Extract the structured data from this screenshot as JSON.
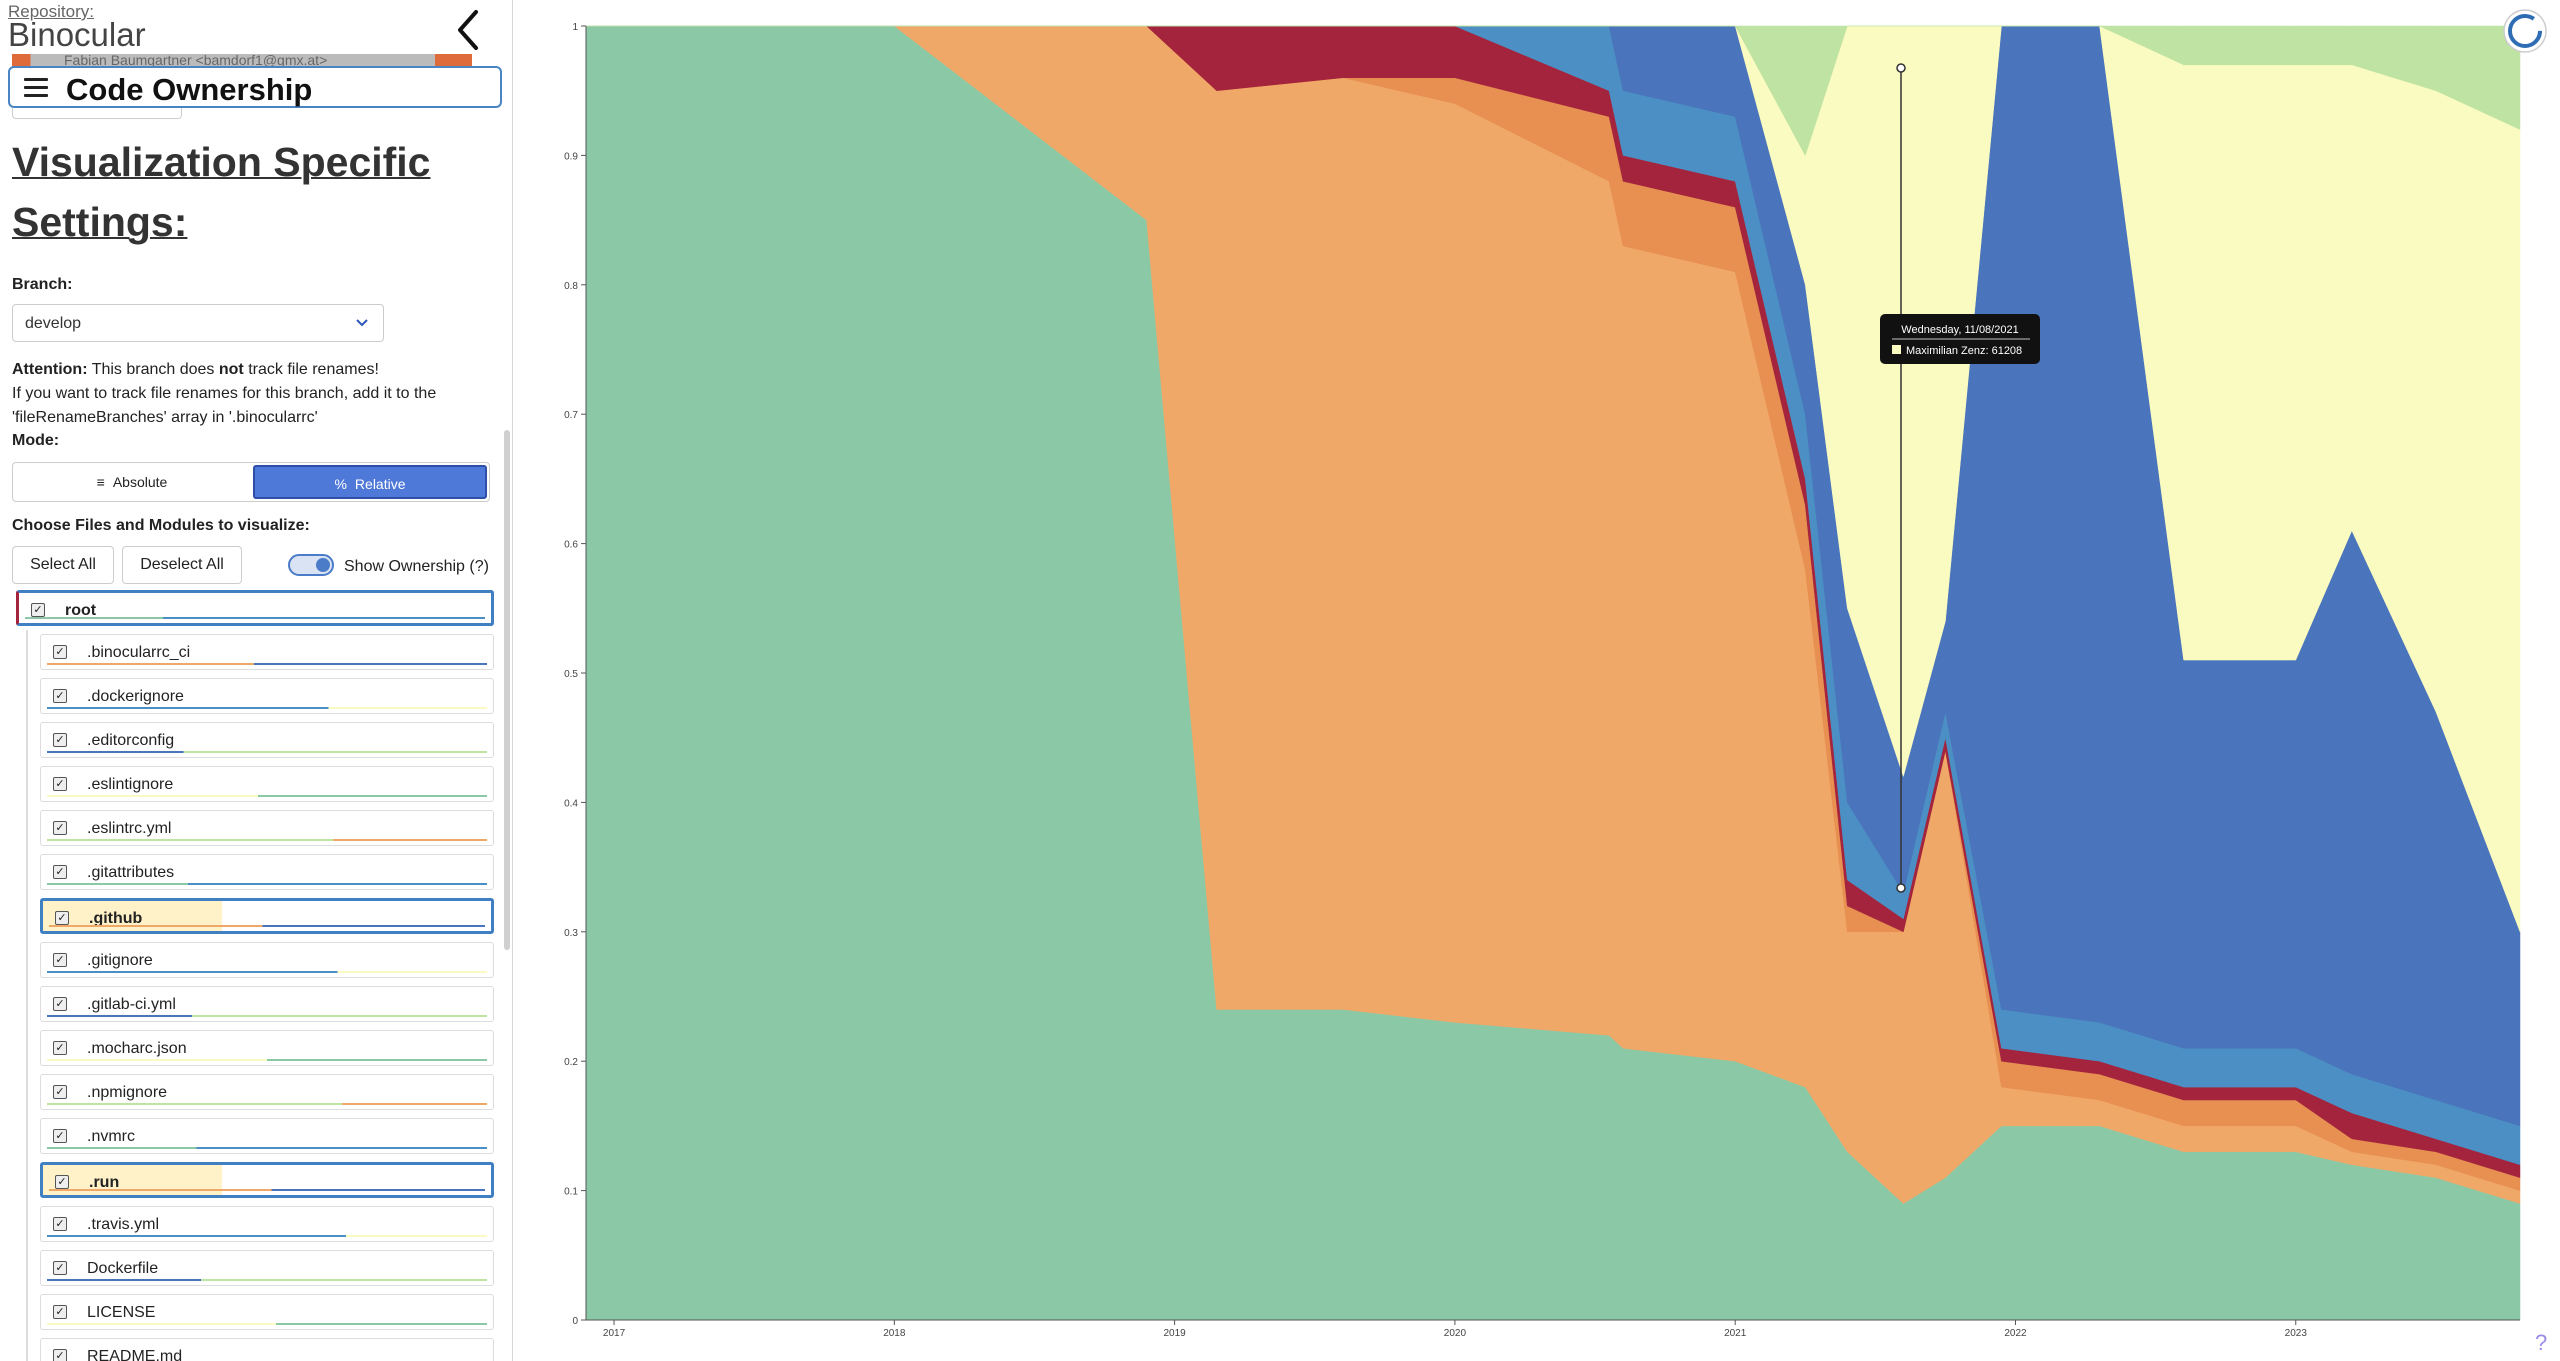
{
  "repository": {
    "label": "Repository:",
    "name": "Binocular",
    "author_strip": "Fabian Baumgartner <bamdorf1@gmx.at>"
  },
  "visualization": {
    "title": "Code Ownership"
  },
  "settings": {
    "heading": "Visualization Specific Settings:",
    "branch_label": "Branch:",
    "branch_value": "develop",
    "attention_label": "Attention:",
    "attention_pre": " This branch does ",
    "attention_bold": "not",
    "attention_post": " track file renames!",
    "attention_line2": "If you want to track file renames for this branch, add it to the",
    "attention_line3": "'fileRenameBranches' array in '.binocularrc'",
    "mode_label": "Mode:",
    "mode_absolute": "Absolute",
    "mode_relative": "Relative",
    "choose_label": "Choose Files and Modules to visualize:",
    "select_all": "Select All",
    "deselect_all": "Deselect All",
    "show_ownership": "Show Ownership (?)"
  },
  "files": [
    {
      "name": "root",
      "folder": true
    },
    {
      "name": ".binocularrc_ci"
    },
    {
      "name": ".dockerignore"
    },
    {
      "name": ".editorconfig"
    },
    {
      "name": ".eslintignore"
    },
    {
      "name": ".eslintrc.yml"
    },
    {
      "name": ".gitattributes"
    },
    {
      "name": ".github",
      "folder": true
    },
    {
      "name": ".gitignore"
    },
    {
      "name": ".gitlab-ci.yml"
    },
    {
      "name": ".mocharc.json"
    },
    {
      "name": ".npmignore"
    },
    {
      "name": ".nvmrc"
    },
    {
      "name": ".run",
      "folder": true
    },
    {
      "name": ".travis.yml"
    },
    {
      "name": "Dockerfile"
    },
    {
      "name": "LICENSE"
    },
    {
      "name": "README.md"
    }
  ],
  "tooltip": {
    "date": "Wednesday, 11/08/2021",
    "entry": "Maximilian Zenz: 61208"
  },
  "chart_data": {
    "type": "area",
    "stacked": true,
    "normalized": true,
    "x_ticks": [
      "2017",
      "2018",
      "2019",
      "2020",
      "2021",
      "2022",
      "2023"
    ],
    "y_ticks": [
      "0",
      "0.1",
      "0.2",
      "0.3",
      "0.4",
      "0.5",
      "0.6",
      "0.7",
      "0.8",
      "0.9",
      "1"
    ],
    "ylim": [
      0,
      1
    ],
    "colors": [
      "#8ac8a6",
      "#f0a868",
      "#e88f52",
      "#a3243c",
      "#4b8fc4",
      "#4a74bb",
      "#fafbc0",
      "#bfe3a2"
    ],
    "x": [
      2016.9,
      2018.0,
      2018.9,
      2019.15,
      2019.6,
      2020.0,
      2020.55,
      2020.6,
      2021.0,
      2021.25,
      2021.4,
      2021.6,
      2021.75,
      2021.95,
      2022.3,
      2022.6,
      2023.0,
      2023.2,
      2023.5,
      2023.8
    ],
    "series": [
      {
        "values": [
          1.0,
          1.0,
          0.85,
          0.24,
          0.24,
          0.23,
          0.22,
          0.21,
          0.2,
          0.18,
          0.13,
          0.09,
          0.11,
          0.15,
          0.15,
          0.13,
          0.13,
          0.12,
          0.11,
          0.09
        ]
      },
      {
        "values": [
          0.0,
          0.0,
          0.15,
          0.71,
          0.72,
          0.71,
          0.66,
          0.62,
          0.61,
          0.4,
          0.17,
          0.21,
          0.33,
          0.03,
          0.02,
          0.02,
          0.02,
          0.01,
          0.01,
          0.01
        ]
      },
      {
        "values": [
          0.0,
          0.0,
          0.0,
          0.0,
          0.0,
          0.02,
          0.05,
          0.05,
          0.05,
          0.05,
          0.02,
          0.0,
          0.0,
          0.02,
          0.02,
          0.02,
          0.02,
          0.01,
          0.01,
          0.01
        ]
      },
      {
        "values": [
          0.0,
          0.0,
          0.0,
          0.05,
          0.04,
          0.04,
          0.02,
          0.02,
          0.02,
          0.02,
          0.02,
          0.01,
          0.01,
          0.01,
          0.01,
          0.01,
          0.01,
          0.02,
          0.01,
          0.01
        ]
      },
      {
        "values": [
          0.0,
          0.0,
          0.0,
          0.0,
          0.0,
          0.0,
          0.05,
          0.05,
          0.05,
          0.05,
          0.06,
          0.02,
          0.02,
          0.03,
          0.03,
          0.03,
          0.03,
          0.03,
          0.03,
          0.03
        ]
      },
      {
        "values": [
          0.0,
          0.0,
          0.0,
          0.0,
          0.0,
          0.0,
          0.0,
          0.05,
          0.07,
          0.1,
          0.15,
          0.09,
          0.07,
          0.76,
          0.77,
          0.3,
          0.3,
          0.42,
          0.3,
          0.15
        ]
      },
      {
        "values": [
          0.0,
          0.0,
          0.0,
          0.0,
          0.0,
          0.0,
          0.0,
          0.0,
          0.0,
          0.1,
          0.45,
          0.58,
          0.46,
          0.0,
          0.0,
          0.46,
          0.46,
          0.36,
          0.48,
          0.62
        ]
      },
      {
        "values": [
          0.0,
          0.0,
          0.0,
          0.0,
          0.0,
          0.0,
          0.0,
          0.0,
          0.0,
          0.1,
          0.0,
          0.0,
          0.0,
          0.0,
          0.0,
          0.03,
          0.03,
          0.03,
          0.05,
          0.08
        ]
      }
    ]
  }
}
